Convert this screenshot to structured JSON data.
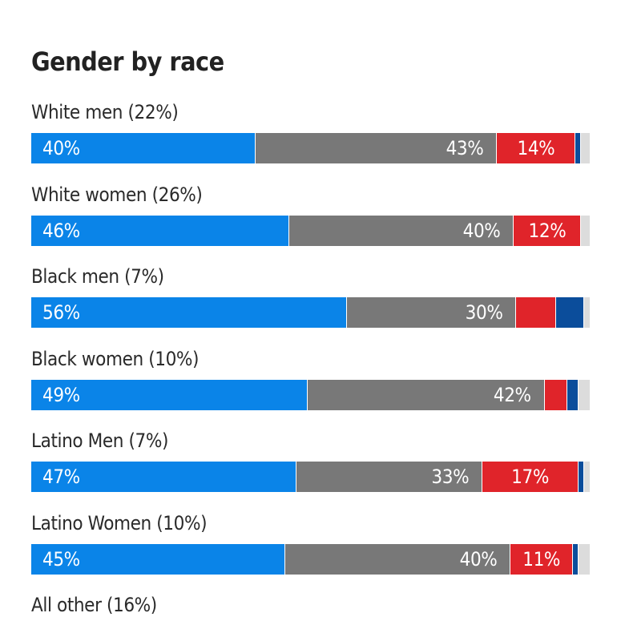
{
  "chart_data": {
    "type": "bar",
    "orientation": "horizontal",
    "stacked": true,
    "title": "Gender by race",
    "xlim": [
      0,
      100
    ],
    "colors": {
      "seg1": "#0a84e8",
      "seg2": "#787878",
      "seg3": "#e0242a",
      "seg4": "#0b4d9b",
      "seg5": "#dcdcdc"
    },
    "rows": [
      {
        "label": "White men (22%)",
        "values": [
          40,
          43,
          14,
          1,
          1.5
        ],
        "labels": [
          "40%",
          "43%",
          "14%",
          "",
          ""
        ]
      },
      {
        "label": "White women (26%)",
        "values": [
          46,
          40,
          12,
          0,
          1.5
        ],
        "labels": [
          "46%",
          "40%",
          "12%",
          "",
          ""
        ]
      },
      {
        "label": "Black men (7%)",
        "values": [
          56,
          30,
          7,
          5,
          1
        ],
        "labels": [
          "56%",
          "30%",
          "",
          "",
          ""
        ]
      },
      {
        "label": "Black women (10%)",
        "values": [
          49,
          42,
          4,
          2,
          2
        ],
        "labels": [
          "49%",
          "42%",
          "",
          "",
          ""
        ]
      },
      {
        "label": "Latino Men (7%)",
        "values": [
          47,
          33,
          17,
          1,
          1
        ],
        "labels": [
          "47%",
          "33%",
          "17%",
          "",
          ""
        ]
      },
      {
        "label": "Latino Women (10%)",
        "values": [
          45,
          40,
          11,
          1,
          2
        ],
        "labels": [
          "45%",
          "40%",
          "11%",
          "",
          ""
        ]
      },
      {
        "label": "All other (16%)",
        "values": [],
        "labels": []
      }
    ]
  }
}
